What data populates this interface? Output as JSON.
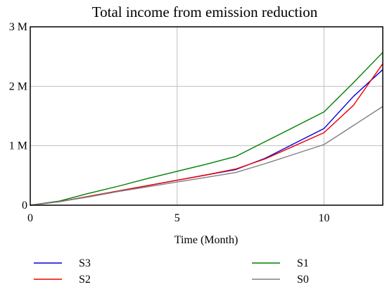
{
  "chart_data": {
    "type": "line",
    "title": "Total income from emission reduction",
    "xlabel": "Time (Month)",
    "ylabel": "",
    "xlim": [
      0,
      12
    ],
    "ylim": [
      0,
      3000000
    ],
    "x_ticks": [
      0,
      5,
      10
    ],
    "x_tick_labels": [
      "0",
      "5",
      "10"
    ],
    "y_ticks": [
      0,
      1000000,
      2000000,
      3000000
    ],
    "y_tick_labels": [
      "0",
      "1 M",
      "2 M",
      "3 M"
    ],
    "grid": true,
    "legend_position": "bottom",
    "x": [
      0,
      1,
      2,
      3,
      4,
      5,
      6,
      7,
      8,
      9,
      10,
      11,
      12
    ],
    "series": [
      {
        "name": "S3",
        "color": "#0000dd",
        "values": [
          0,
          60000,
          150000,
          240000,
          330000,
          420000,
          510000,
          600000,
          790000,
          1040000,
          1290000,
          1830000,
          2280000
        ]
      },
      {
        "name": "S1",
        "color": "#008000",
        "values": [
          0,
          70000,
          200000,
          320000,
          450000,
          570000,
          690000,
          820000,
          1070000,
          1320000,
          1570000,
          2060000,
          2570000
        ]
      },
      {
        "name": "S2",
        "color": "#ee0000",
        "values": [
          0,
          60000,
          150000,
          240000,
          330000,
          420000,
          510000,
          610000,
          780000,
          1000000,
          1220000,
          1680000,
          2380000
        ]
      },
      {
        "name": "S0",
        "color": "#808080",
        "values": [
          0,
          60000,
          140000,
          230000,
          310000,
          390000,
          470000,
          550000,
          700000,
          860000,
          1020000,
          1340000,
          1660000
        ]
      }
    ]
  }
}
